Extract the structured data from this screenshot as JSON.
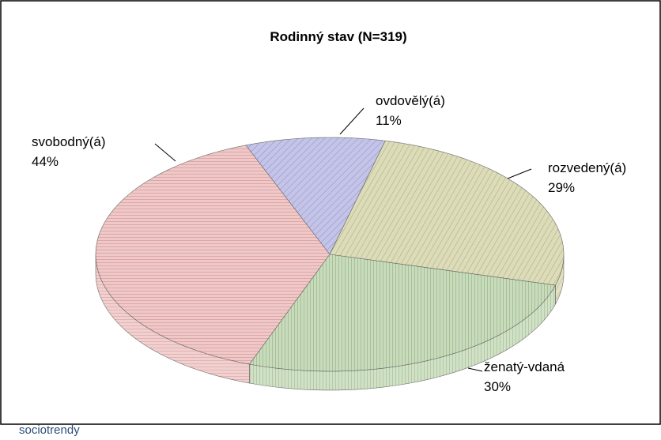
{
  "chart_data": {
    "type": "pie",
    "title": "Rodinný stav (N=319)",
    "categories": [
      "ovdovělý(á)",
      "rozvedený(á)",
      "ženatý-vdaná",
      "svobodný(á)"
    ],
    "values": [
      11,
      29,
      30,
      44
    ],
    "value_labels": [
      "11%",
      "29%",
      "30%",
      "44%"
    ],
    "colors": [
      "#b4b4dc",
      "#d2d2a8",
      "#b6cca8",
      "#e6b2b2"
    ],
    "footer": "sociotrendy"
  }
}
